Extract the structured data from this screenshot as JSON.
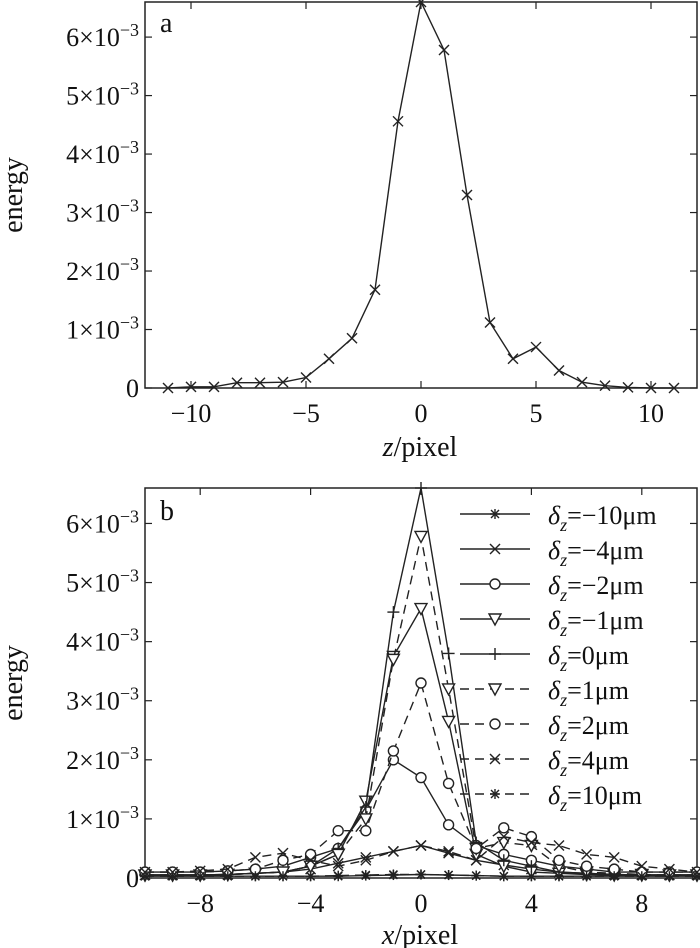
{
  "chart_data": [
    {
      "type": "line",
      "panel_label": "a",
      "xlabel_var": "z",
      "xlabel_unit": "/pixel",
      "ylabel": "energy",
      "xlim": [
        -12,
        12
      ],
      "ylim": [
        0,
        0.0066
      ],
      "xticks": [
        -10,
        -5,
        0,
        5,
        10
      ],
      "xtick_labels": [
        "−10",
        "−5",
        "0",
        "5",
        "10"
      ],
      "yticks": [
        0,
        0.001,
        0.002,
        0.003,
        0.004,
        0.005,
        0.006
      ],
      "ytick_labels": [
        {
          "m": "0",
          "e": ""
        },
        {
          "m": "1×10",
          "e": "−3"
        },
        {
          "m": "2×10",
          "e": "−3"
        },
        {
          "m": "3×10",
          "e": "−3"
        },
        {
          "m": "4×10",
          "e": "−3"
        },
        {
          "m": "5×10",
          "e": "−3"
        },
        {
          "m": "6×10",
          "e": "−3"
        }
      ],
      "series": [
        {
          "marker": "x",
          "dash": "solid",
          "x": [
            -11,
            -10,
            -9,
            -8,
            -7,
            -6,
            -5,
            -4,
            -3,
            -2,
            -1,
            0,
            1,
            2,
            3,
            4,
            5,
            6,
            7,
            8,
            9,
            10,
            11
          ],
          "y": [
            0,
            2e-05,
            2e-05,
            9e-05,
            9e-05,
            0.0001,
            0.00018,
            0.0005,
            0.00085,
            0.00168,
            0.00456,
            0.0066,
            0.00578,
            0.0033,
            0.00112,
            0.0005,
            0.0007,
            0.0003,
            0.0001,
            4e-05,
            1e-05,
            0,
            0
          ]
        }
      ]
    },
    {
      "type": "line",
      "panel_label": "b",
      "xlabel_var": "x",
      "xlabel_unit": "/pixel",
      "ylabel": "energy",
      "xlim": [
        -10,
        10
      ],
      "ylim": [
        0,
        0.0066
      ],
      "xticks": [
        -8,
        -4,
        0,
        4,
        8
      ],
      "xtick_labels": [
        "−8",
        "−4",
        "0",
        "4",
        "8"
      ],
      "yticks": [
        0,
        0.001,
        0.002,
        0.003,
        0.004,
        0.005,
        0.006
      ],
      "ytick_labels": [
        {
          "m": "0",
          "e": ""
        },
        {
          "m": "1×10",
          "e": "−3"
        },
        {
          "m": "2×10",
          "e": "−3"
        },
        {
          "m": "3×10",
          "e": "−3"
        },
        {
          "m": "4×10",
          "e": "−3"
        },
        {
          "m": "5×10",
          "e": "−3"
        },
        {
          "m": "6×10",
          "e": "−3"
        }
      ],
      "x": [
        -10,
        -9,
        -8,
        -7,
        -6,
        -5,
        -4,
        -3,
        -2,
        -1,
        0,
        1,
        2,
        3,
        4,
        5,
        6,
        7,
        8,
        9,
        10
      ],
      "series": [
        {
          "name": "=−10μm",
          "marker": "star",
          "dash": "solid",
          "y": [
            3e-05,
            3e-05,
            3e-05,
            3e-05,
            3e-05,
            3e-05,
            3e-05,
            3e-05,
            4e-05,
            5e-05,
            6e-05,
            5e-05,
            4e-05,
            3e-05,
            3e-05,
            3e-05,
            3e-05,
            3e-05,
            3e-05,
            3e-05,
            3e-05
          ]
        },
        {
          "name": "=−4μm",
          "marker": "x",
          "dash": "solid",
          "y": [
            5e-05,
            5e-05,
            5e-05,
            6e-05,
            8e-05,
            0.0001,
            0.00015,
            0.00025,
            0.00035,
            0.00045,
            0.00055,
            0.00042,
            0.0003,
            0.00022,
            0.00015,
            0.0001,
            8e-05,
            6e-05,
            5e-05,
            5e-05,
            5e-05
          ]
        },
        {
          "name": "=−2μm",
          "marker": "circle",
          "dash": "solid",
          "y": [
            0.0001,
            0.0001,
            0.0001,
            0.00012,
            0.00015,
            0.0002,
            0.00035,
            0.0005,
            0.00115,
            0.002,
            0.0017,
            0.0009,
            0.00055,
            0.0004,
            0.0003,
            0.0002,
            0.00015,
            0.0001,
            0.0001,
            0.0001,
            0.0001
          ]
        },
        {
          "name": "=−1μm",
          "marker": "tri",
          "dash": "solid",
          "y": [
            5e-05,
            5e-05,
            5e-05,
            6e-05,
            8e-05,
            0.0001,
            0.0002,
            0.0004,
            0.0013,
            0.00375,
            0.00456,
            0.00265,
            0.0004,
            0.0002,
            0.0001,
            8e-05,
            6e-05,
            5e-05,
            5e-05,
            5e-05,
            5e-05
          ]
        },
        {
          "name": "=0μm",
          "marker": "plus",
          "dash": "solid",
          "y": [
            5e-05,
            5e-05,
            5e-05,
            6e-05,
            8e-05,
            0.0001,
            0.0002,
            0.0005,
            0.0012,
            0.0045,
            0.0066,
            0.0038,
            0.0006,
            0.0003,
            0.0002,
            0.0001,
            8e-05,
            6e-05,
            5e-05,
            5e-05,
            5e-05
          ]
        },
        {
          "name": "=1μm",
          "marker": "tri",
          "dash": "dashed",
          "y": [
            5e-05,
            5e-05,
            5e-05,
            6e-05,
            8e-05,
            0.0001,
            0.0002,
            0.0004,
            0.001,
            0.0037,
            0.00578,
            0.0032,
            0.0005,
            0.0006,
            0.00055,
            0.0002,
            0.0001,
            8e-05,
            6e-05,
            5e-05,
            5e-05
          ]
        },
        {
          "name": "=2μm",
          "marker": "circle",
          "dash": "dashed",
          "y": [
            0.0001,
            0.0001,
            0.0001,
            0.00012,
            0.00015,
            0.0003,
            0.0004,
            0.0008,
            0.0008,
            0.00215,
            0.0033,
            0.0016,
            0.0005,
            0.00085,
            0.0007,
            0.0003,
            0.0002,
            0.00015,
            0.0001,
            0.0001,
            0.0001
          ]
        },
        {
          "name": "=4μm",
          "marker": "x",
          "dash": "dashed",
          "y": [
            0.0001,
            0.0001,
            0.00012,
            0.00015,
            0.00035,
            0.00042,
            0.0003,
            0.0002,
            0.0003,
            0.00045,
            0.00055,
            0.00045,
            0.0003,
            0.0007,
            0.0006,
            0.00055,
            0.0004,
            0.00035,
            0.0002,
            0.00015,
            0.0001
          ]
        },
        {
          "name": "=10μm",
          "marker": "star",
          "dash": "dashed",
          "y": [
            3e-05,
            3e-05,
            3e-05,
            3e-05,
            3e-05,
            3e-05,
            3e-05,
            4e-05,
            5e-05,
            6e-05,
            6e-05,
            5e-05,
            4e-05,
            3e-05,
            3e-05,
            3e-05,
            3e-05,
            3e-05,
            3e-05,
            3e-05,
            3e-05
          ]
        }
      ],
      "legend": {
        "placement": "top-right",
        "symbol": "δ",
        "subscript": "z"
      }
    }
  ]
}
